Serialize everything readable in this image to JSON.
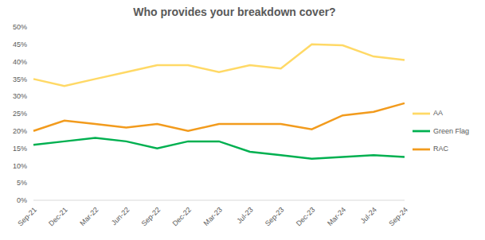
{
  "chart_data": {
    "type": "line",
    "title": "Who provides your breakdown cover?",
    "categories": [
      "Sep-21",
      "Dec-21",
      "Mar-22",
      "Jun-22",
      "Sep-22",
      "Dec-22",
      "Mar-23",
      "Jul-23",
      "Sep-23",
      "Dec-23",
      "Mar-24",
      "Jul-24",
      "Sep-24"
    ],
    "series": [
      {
        "name": "AA",
        "color": "#FFD966",
        "values": [
          35,
          33,
          35,
          37,
          39,
          39,
          37,
          39,
          38,
          45,
          44.7,
          41.5,
          40.5
        ]
      },
      {
        "name": "RAC",
        "color": "#F29B1D",
        "values": [
          20,
          23,
          22,
          21,
          22,
          20,
          22,
          22,
          22,
          20.5,
          24.5,
          25.5,
          28
        ]
      },
      {
        "name": "Green Flag",
        "color": "#00B050",
        "values": [
          16,
          17,
          18,
          17,
          15,
          17,
          17,
          14,
          13,
          12,
          12.5,
          13,
          12.5
        ]
      }
    ],
    "ylim": [
      0,
      50
    ],
    "yticks": [
      {
        "value": 0,
        "label": "0%"
      },
      {
        "value": 5,
        "label": "5%"
      },
      {
        "value": 10,
        "label": "10%"
      },
      {
        "value": 15,
        "label": "15%"
      },
      {
        "value": 20,
        "label": "20%"
      },
      {
        "value": 25,
        "label": "25%"
      },
      {
        "value": 30,
        "label": "30%"
      },
      {
        "value": 35,
        "label": "35%"
      },
      {
        "value": 40,
        "label": "40%"
      },
      {
        "value": 45,
        "label": "45%"
      },
      {
        "value": 50,
        "label": "50%"
      }
    ],
    "grid": false,
    "legend": "right"
  }
}
